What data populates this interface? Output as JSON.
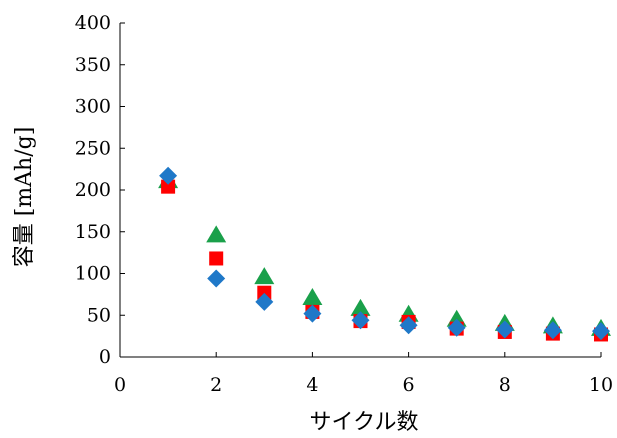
{
  "chart_data": {
    "type": "scatter",
    "title": "",
    "xlabel": "サイクル数",
    "ylabel": "容量 [mAh/g]",
    "xlim": [
      0,
      10
    ],
    "ylim": [
      0,
      400
    ],
    "xticks": [
      "0",
      "2",
      "4",
      "6",
      "8",
      "10"
    ],
    "yticks": [
      "0",
      "50",
      "100",
      "150",
      "200",
      "250",
      "300",
      "350",
      "400"
    ],
    "grid": false,
    "legend": "none",
    "series": [
      {
        "marker": "triangle",
        "color": "#1aa04a",
        "x": [
          1,
          2,
          3,
          4,
          5,
          6,
          7,
          8,
          9,
          10
        ],
        "y": [
          210,
          145,
          95,
          70,
          57,
          50,
          44,
          39,
          36,
          33
        ]
      },
      {
        "marker": "square",
        "color": "#ff0000",
        "x": [
          1,
          2,
          3,
          4,
          5,
          6,
          7,
          8,
          9,
          10
        ],
        "y": [
          204,
          118,
          77,
          54,
          43,
          42,
          34,
          30,
          28,
          27
        ]
      },
      {
        "marker": "diamond",
        "color": "#1f78c8",
        "x": [
          1,
          2,
          3,
          4,
          5,
          6,
          7,
          8,
          9,
          10
        ],
        "y": [
          217,
          94,
          66,
          52,
          44,
          38,
          35,
          33,
          32,
          31
        ]
      }
    ]
  }
}
